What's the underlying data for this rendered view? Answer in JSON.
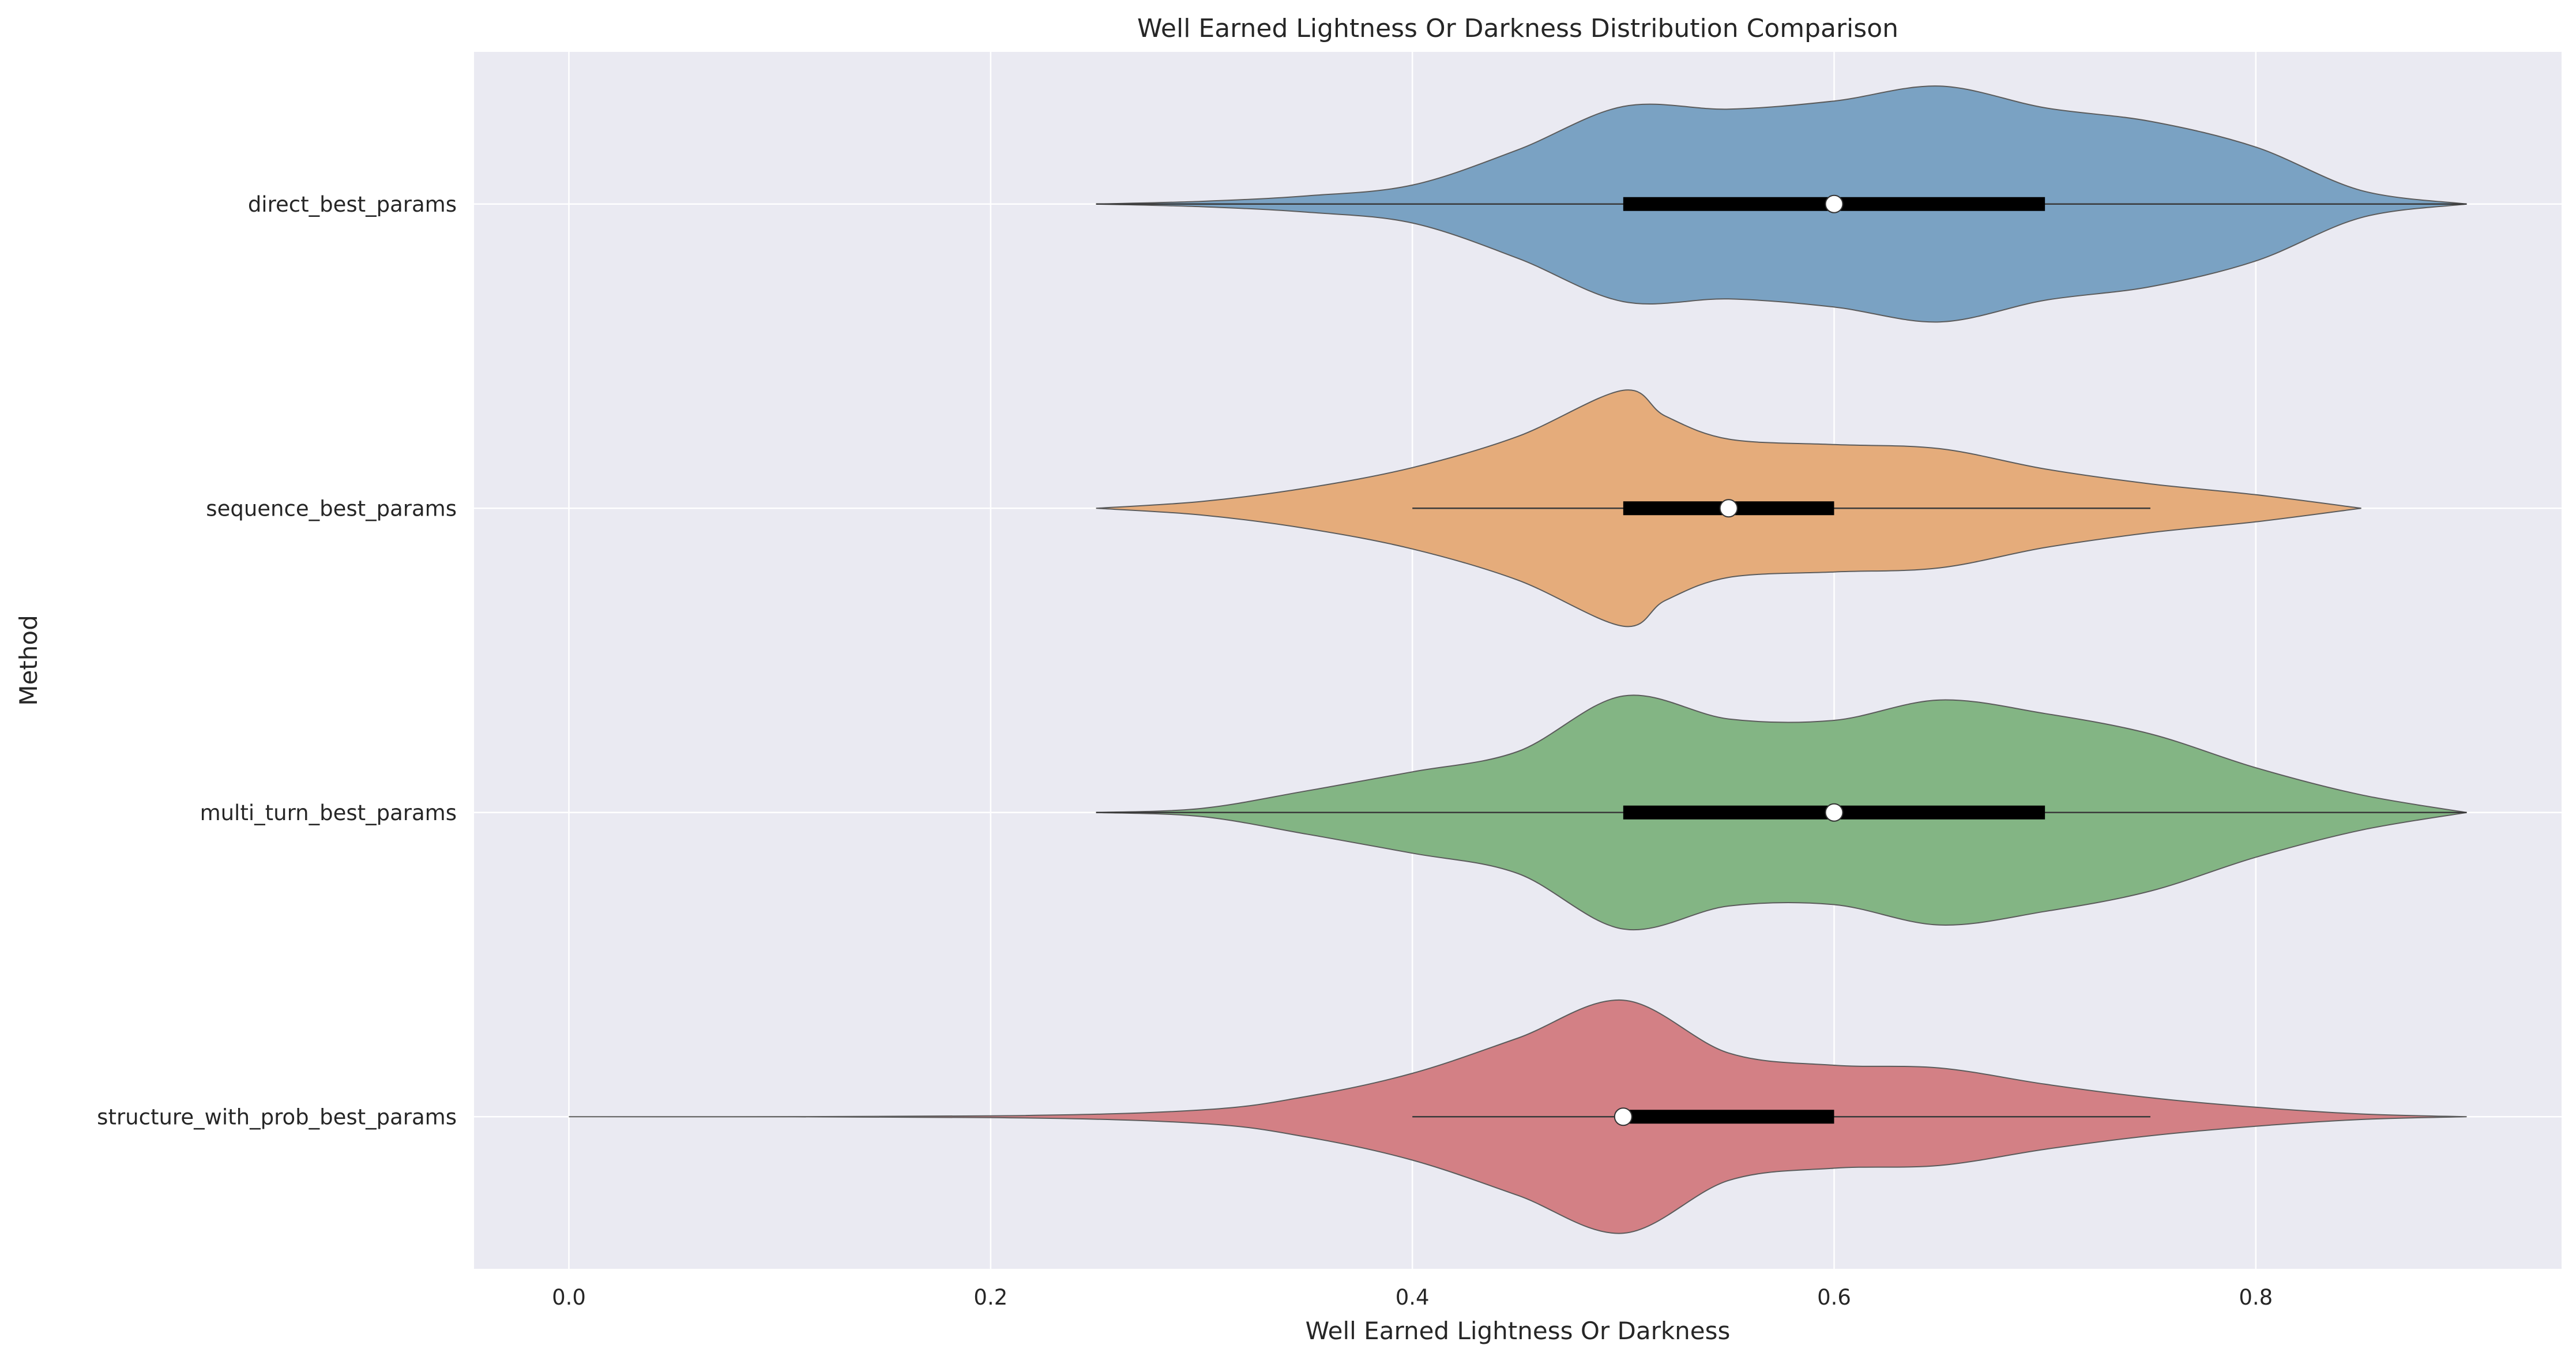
{
  "chart_data": {
    "type": "violin",
    "orientation": "horizontal",
    "title": "Well Earned Lightness Or Darkness Distribution Comparison",
    "xlabel": "Well Earned Lightness Or Darkness",
    "ylabel": "Method",
    "xlim": [
      -0.045,
      0.945
    ],
    "xticks": [
      0.0,
      0.2,
      0.4,
      0.6,
      0.8
    ],
    "xtick_labels": [
      "0.0",
      "0.2",
      "0.4",
      "0.6",
      "0.8"
    ],
    "grid": true,
    "background": "#eaeaf2",
    "grid_color": "#ffffff",
    "series": [
      {
        "name": "direct_best_params",
        "color": "#7aa2c3",
        "median": 0.6,
        "q1": 0.5,
        "q3": 0.7,
        "whisker_low": 0.25,
        "whisker_high": 0.9,
        "density": [
          [
            0.25,
            0.0
          ],
          [
            0.3,
            0.02
          ],
          [
            0.35,
            0.06
          ],
          [
            0.4,
            0.14
          ],
          [
            0.45,
            0.4
          ],
          [
            0.5,
            0.72
          ],
          [
            0.55,
            0.7
          ],
          [
            0.6,
            0.76
          ],
          [
            0.65,
            0.87
          ],
          [
            0.7,
            0.71
          ],
          [
            0.75,
            0.61
          ],
          [
            0.8,
            0.42
          ],
          [
            0.85,
            0.1
          ],
          [
            0.9,
            0.0
          ]
        ]
      },
      {
        "name": "sequence_best_params",
        "color": "#e5ac7b",
        "median": 0.55,
        "q1": 0.5,
        "q3": 0.6,
        "whisker_low": 0.4,
        "whisker_high": 0.75,
        "density": [
          [
            0.25,
            0.0
          ],
          [
            0.3,
            0.05
          ],
          [
            0.35,
            0.15
          ],
          [
            0.4,
            0.3
          ],
          [
            0.45,
            0.53
          ],
          [
            0.5,
            0.87
          ],
          [
            0.52,
            0.68
          ],
          [
            0.55,
            0.51
          ],
          [
            0.6,
            0.47
          ],
          [
            0.65,
            0.44
          ],
          [
            0.7,
            0.29
          ],
          [
            0.75,
            0.18
          ],
          [
            0.8,
            0.1
          ],
          [
            0.85,
            0.0
          ]
        ]
      },
      {
        "name": "multi_turn_best_params",
        "color": "#83b584",
        "median": 0.6,
        "q1": 0.5,
        "q3": 0.7,
        "whisker_low": 0.25,
        "whisker_high": 0.9,
        "density": [
          [
            0.25,
            0.0
          ],
          [
            0.3,
            0.03
          ],
          [
            0.35,
            0.16
          ],
          [
            0.4,
            0.3
          ],
          [
            0.45,
            0.45
          ],
          [
            0.5,
            0.86
          ],
          [
            0.55,
            0.69
          ],
          [
            0.6,
            0.68
          ],
          [
            0.65,
            0.83
          ],
          [
            0.7,
            0.73
          ],
          [
            0.75,
            0.58
          ],
          [
            0.8,
            0.33
          ],
          [
            0.85,
            0.13
          ],
          [
            0.9,
            0.0
          ]
        ]
      },
      {
        "name": "structure_with_prob_best_params",
        "color": "#d38085",
        "median": 0.5,
        "q1": 0.5,
        "q3": 0.6,
        "whisker_low": 0.4,
        "whisker_high": 0.75,
        "density": [
          [
            0.0,
            0.0
          ],
          [
            0.2,
            0.006
          ],
          [
            0.3,
            0.05
          ],
          [
            0.35,
            0.15
          ],
          [
            0.4,
            0.32
          ],
          [
            0.45,
            0.58
          ],
          [
            0.5,
            0.86
          ],
          [
            0.55,
            0.47
          ],
          [
            0.6,
            0.38
          ],
          [
            0.65,
            0.36
          ],
          [
            0.7,
            0.24
          ],
          [
            0.75,
            0.14
          ],
          [
            0.8,
            0.07
          ],
          [
            0.85,
            0.02
          ],
          [
            0.9,
            0.0
          ]
        ]
      }
    ]
  }
}
